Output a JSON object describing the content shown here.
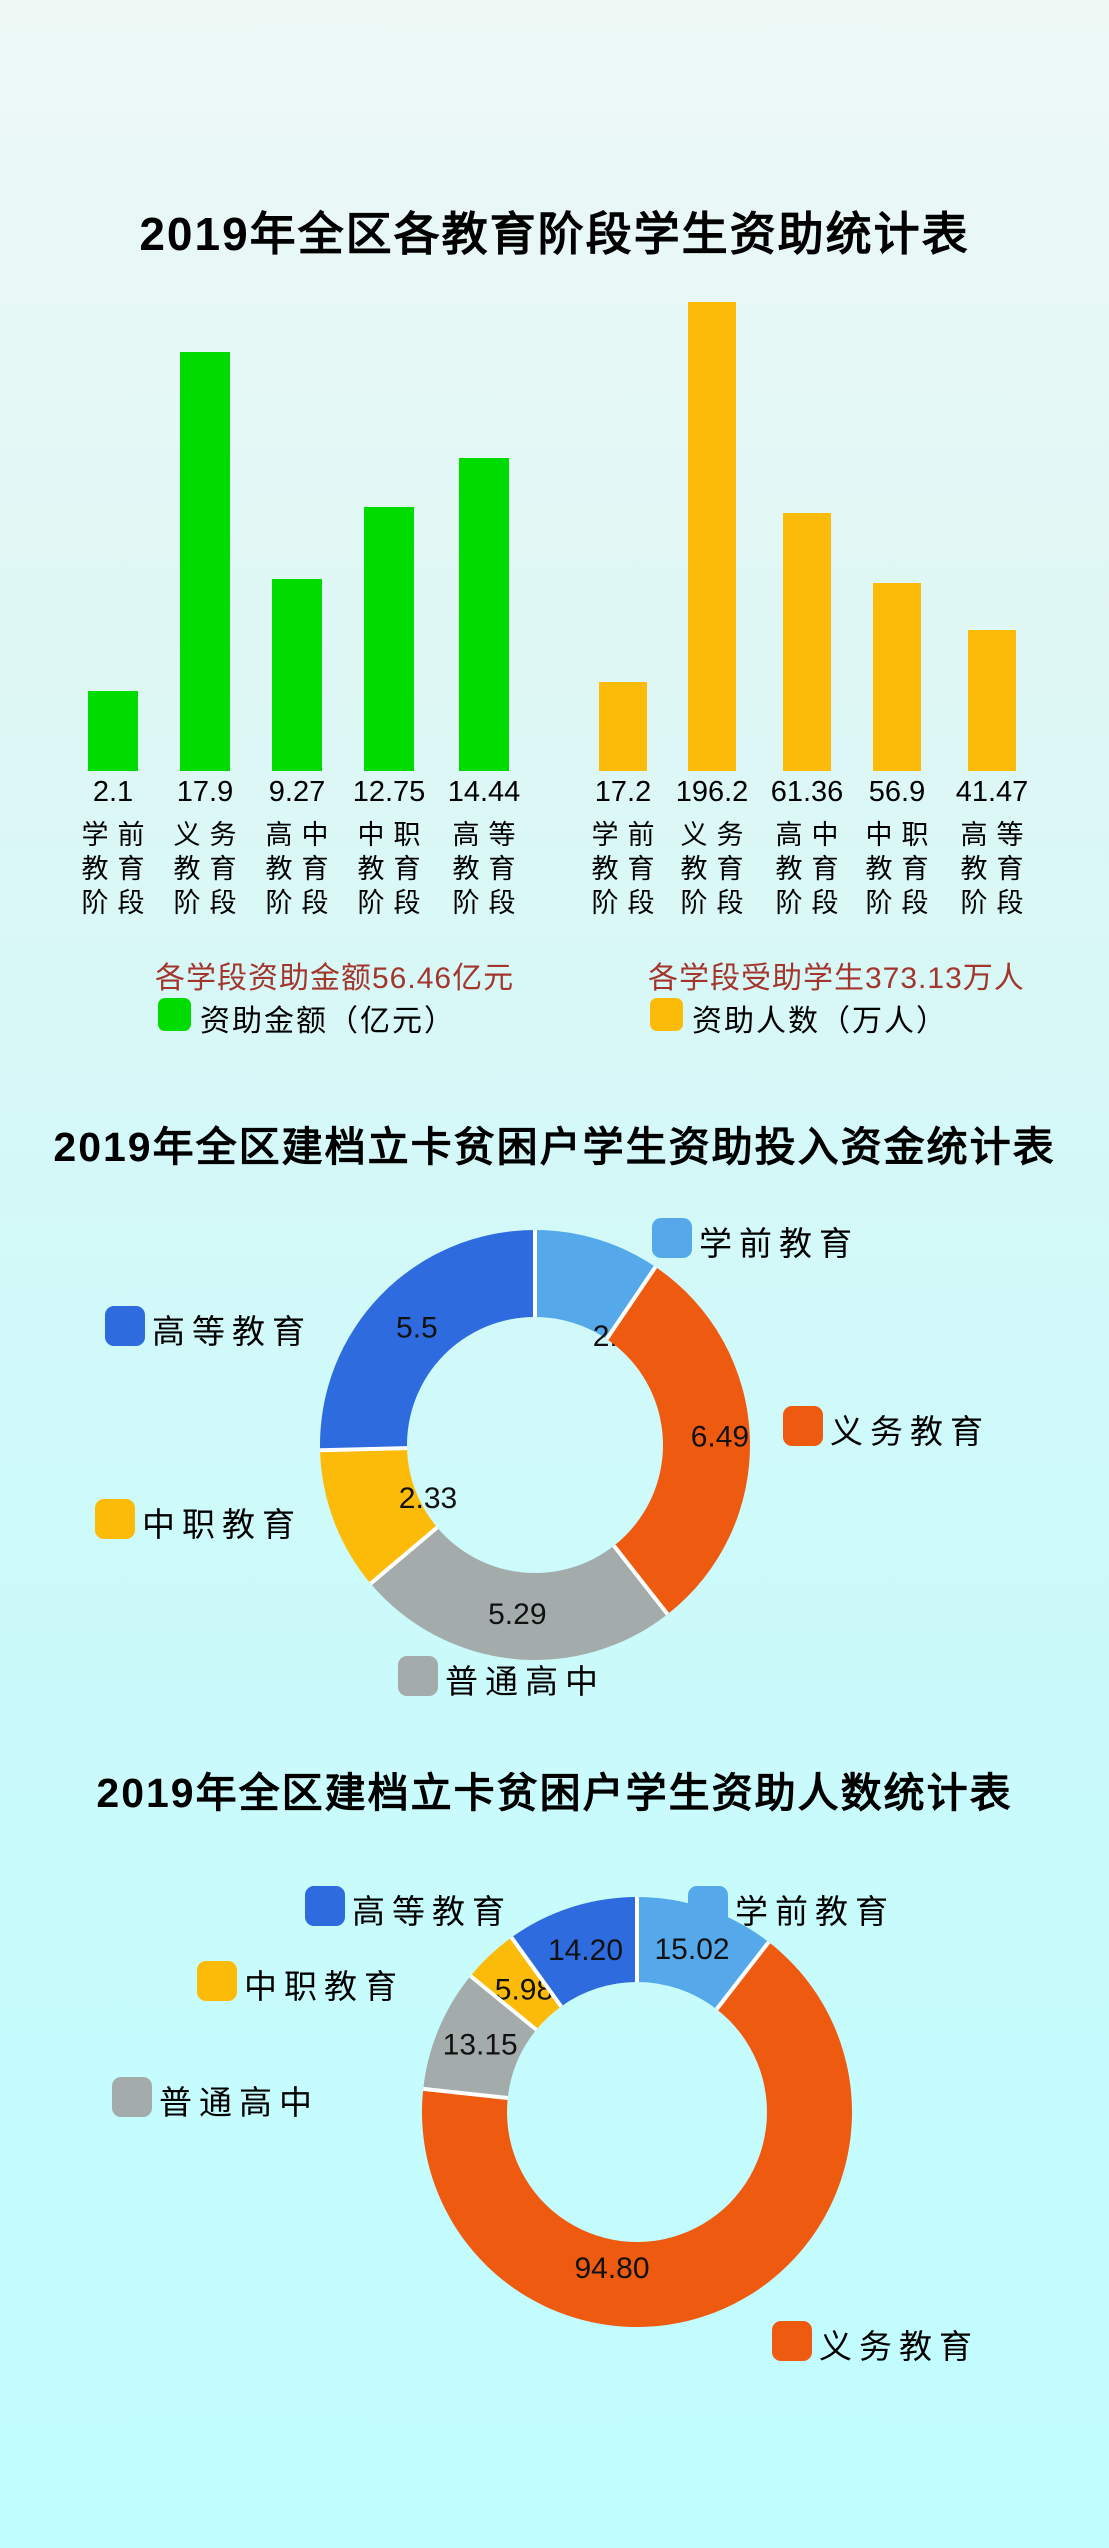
{
  "background": {
    "gradient_top": "#EEF9F6",
    "gradient_bottom": "#C0FDFF"
  },
  "chart_data": [
    {
      "type": "bar",
      "title": "2019年全区各教育阶段学生资助统计表",
      "categories": [
        "学前教育阶段",
        "义务教育阶段",
        "高中教育阶段",
        "中职教育阶段",
        "高等教育阶段"
      ],
      "series": [
        {
          "name": "资助金额（亿元）",
          "color": "#00DC00",
          "values": [
            2.1,
            17.9,
            9.27,
            12.75,
            14.44
          ],
          "value_displays": [
            "2.1",
            "17.9",
            "9.27",
            "12.75",
            "14.44"
          ],
          "annotation": "各学段资助金额56.46亿元"
        },
        {
          "name": "资助人数（万人）",
          "color": "#FCBB08",
          "values": [
            17.2,
            196.2,
            61.36,
            56.9,
            41.47
          ],
          "value_displays": [
            "17.2",
            "196.2",
            "61.36",
            "56.9",
            "41.47"
          ],
          "annotation": "各学段受助学生373.13万人"
        }
      ],
      "annotation_color": "#A3352C",
      "axes_shown": false,
      "grid": false,
      "value_label_position": "below-bar"
    },
    {
      "type": "pie",
      "subtype": "donut",
      "title": "2019年全区建档立卡贫困户学生资助投入资金统计表",
      "legend_position": "around",
      "start_angle_deg": 0,
      "clockwise": true,
      "slices": [
        {
          "label": "学前教育",
          "value": 2.05,
          "display": "2.05",
          "color": "#55A9EB"
        },
        {
          "label": "义务教育",
          "value": 6.49,
          "display": "6.49",
          "color": "#EE5A10"
        },
        {
          "label": "普通高中",
          "value": 5.29,
          "display": "5.29",
          "color": "#A4ABAB"
        },
        {
          "label": "中职教育",
          "value": 2.33,
          "display": "2.33",
          "color": "#FCBB08"
        },
        {
          "label": "高等教育",
          "value": 5.5,
          "display": "5.5",
          "color": "#2D6BDE"
        }
      ]
    },
    {
      "type": "pie",
      "subtype": "donut",
      "title": "2019年全区建档立卡贫困户学生资助人数统计表",
      "legend_position": "around",
      "start_angle_deg": 0,
      "clockwise": true,
      "slices": [
        {
          "label": "学前教育",
          "value": 15.02,
          "display": "15.02",
          "color": "#55A9EB"
        },
        {
          "label": "义务教育",
          "value": 94.8,
          "display": "94.80",
          "color": "#EE5A10"
        },
        {
          "label": "普通高中",
          "value": 13.15,
          "display": "13.15",
          "color": "#A4ABAB"
        },
        {
          "label": "中职教育",
          "value": 5.98,
          "display": "5.98",
          "color": "#FCBB08"
        },
        {
          "label": "高等教育",
          "value": 14.2,
          "display": "14.20",
          "color": "#2D6BDE"
        }
      ]
    }
  ]
}
